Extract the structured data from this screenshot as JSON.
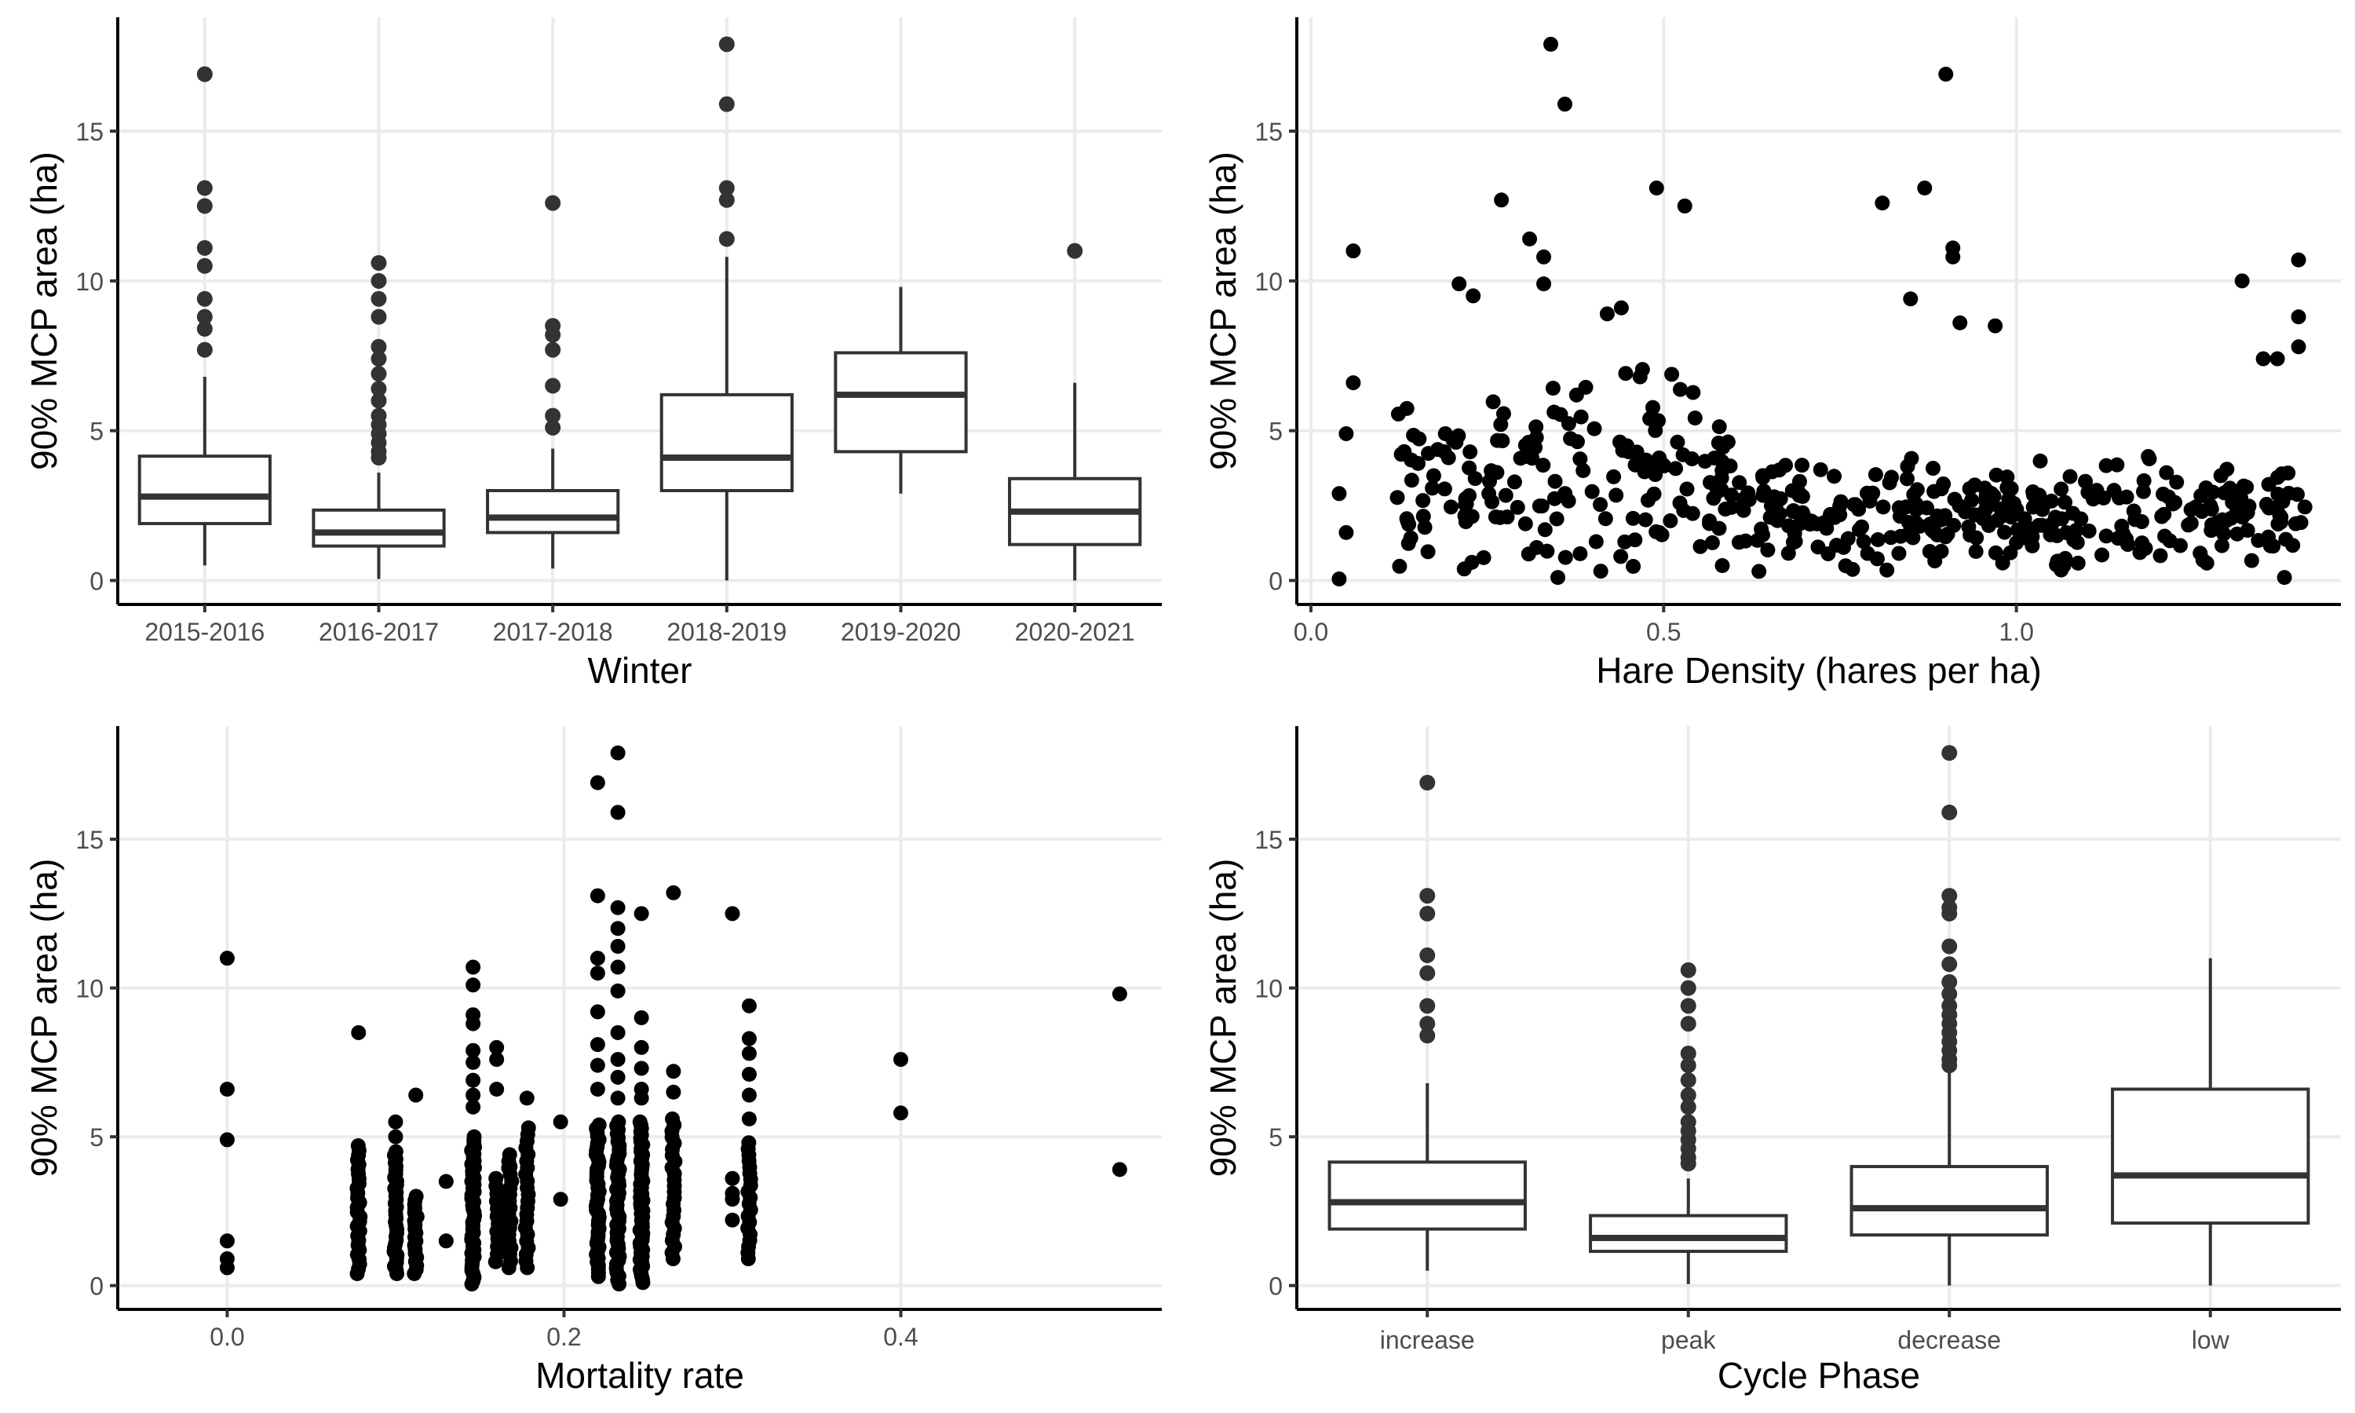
{
  "chart_data": [
    {
      "type": "box",
      "xlabel": "Winter",
      "ylabel": "90% MCP area (ha)",
      "ylim": [
        -0.8,
        18.8
      ],
      "y_ticks": [
        0,
        5,
        10,
        15
      ],
      "grid": true,
      "categories": [
        "2015-2016",
        "2016-2017",
        "2017-2018",
        "2018-2019",
        "2019-2020",
        "2020-2021"
      ],
      "boxes": [
        {
          "min": 0.5,
          "q1": 1.9,
          "median": 2.8,
          "q3": 4.15,
          "max": 6.8,
          "outliers": [
            16.9,
            13.1,
            12.5,
            11.1,
            10.5,
            9.4,
            8.8,
            8.4,
            7.7
          ]
        },
        {
          "min": 0.05,
          "q1": 1.15,
          "median": 1.6,
          "q3": 2.35,
          "max": 3.6,
          "outliers": [
            10.6,
            10.0,
            9.4,
            8.8,
            7.8,
            7.4,
            6.9,
            6.4,
            6.0,
            5.5,
            5.2,
            4.9,
            4.6,
            4.3,
            4.1
          ]
        },
        {
          "min": 0.4,
          "q1": 1.6,
          "median": 2.1,
          "q3": 3.0,
          "max": 4.4,
          "outliers": [
            12.6,
            8.5,
            8.2,
            7.7,
            6.5,
            5.5,
            5.1
          ]
        },
        {
          "min": 0.0,
          "q1": 3.0,
          "median": 4.1,
          "q3": 6.2,
          "max": 10.8,
          "outliers": [
            17.9,
            15.9,
            13.1,
            12.7,
            11.4
          ]
        },
        {
          "min": 2.9,
          "q1": 4.3,
          "median": 6.2,
          "q3": 7.6,
          "max": 9.8,
          "outliers": []
        },
        {
          "min": 0.0,
          "q1": 1.2,
          "median": 2.3,
          "q3": 3.4,
          "max": 6.6,
          "outliers": [
            11.0
          ]
        }
      ]
    },
    {
      "type": "scatter",
      "xlabel": "Hare Density (hares per ha)",
      "ylabel": "90% MCP area (ha)",
      "xlim": [
        -0.02,
        1.46
      ],
      "ylim": [
        -0.8,
        18.8
      ],
      "x_ticks": [
        0.0,
        0.5,
        1.0
      ],
      "x_tick_labels": [
        "0.0",
        "0.5",
        "1.0"
      ],
      "y_ticks": [
        0,
        5,
        10,
        15
      ],
      "grid": true,
      "points_highlight": [
        {
          "x": 0.34,
          "y": 17.9
        },
        {
          "x": 0.9,
          "y": 16.9
        },
        {
          "x": 0.36,
          "y": 15.9
        },
        {
          "x": 0.49,
          "y": 13.1
        },
        {
          "x": 0.87,
          "y": 13.1
        },
        {
          "x": 0.27,
          "y": 12.7
        },
        {
          "x": 0.53,
          "y": 12.5
        },
        {
          "x": 0.81,
          "y": 12.6
        },
        {
          "x": 0.31,
          "y": 11.4
        },
        {
          "x": 0.06,
          "y": 11.0
        },
        {
          "x": 0.91,
          "y": 11.1
        },
        {
          "x": 0.33,
          "y": 10.8
        },
        {
          "x": 0.91,
          "y": 10.8
        },
        {
          "x": 1.4,
          "y": 10.7
        },
        {
          "x": 0.21,
          "y": 9.9
        },
        {
          "x": 0.33,
          "y": 9.9
        },
        {
          "x": 1.32,
          "y": 10.0
        },
        {
          "x": 0.23,
          "y": 9.5
        },
        {
          "x": 0.85,
          "y": 9.4
        },
        {
          "x": 0.44,
          "y": 9.1
        },
        {
          "x": 0.42,
          "y": 8.9
        },
        {
          "x": 1.4,
          "y": 8.8
        },
        {
          "x": 0.97,
          "y": 8.5
        },
        {
          "x": 0.92,
          "y": 8.6
        },
        {
          "x": 1.4,
          "y": 7.8
        },
        {
          "x": 1.35,
          "y": 7.4
        },
        {
          "x": 1.37,
          "y": 7.4
        },
        {
          "x": 0.06,
          "y": 6.6
        },
        {
          "x": 0.05,
          "y": 4.9
        },
        {
          "x": 0.04,
          "y": 2.9
        },
        {
          "x": 0.04,
          "y": 0.05
        },
        {
          "x": 0.05,
          "y": 1.6
        },
        {
          "x": 1.38,
          "y": 0.1
        },
        {
          "x": 0.35,
          "y": 0.1
        }
      ],
      "points_cloud": {
        "count": 480,
        "x_range": [
          0.12,
          1.41
        ],
        "y_center": 2.2,
        "y_spread": 1.6
      }
    },
    {
      "type": "scatter",
      "xlabel": "Mortality rate",
      "ylabel": "90% MCP area (ha)",
      "xlim": [
        -0.065,
        0.555
      ],
      "ylim": [
        -0.8,
        18.8
      ],
      "x_ticks": [
        0.0,
        0.2,
        0.4
      ],
      "x_tick_labels": [
        "0.0",
        "0.2",
        "0.4"
      ],
      "y_ticks": [
        0,
        5,
        10,
        15
      ],
      "grid": true,
      "columns": [
        {
          "x": 0.0,
          "values": [
            11.0,
            6.6,
            4.9,
            1.5,
            0.9,
            0.6
          ]
        },
        {
          "x": 0.078,
          "min": 0.4,
          "max": 4.7,
          "n": 28,
          "extra": [
            8.5
          ]
        },
        {
          "x": 0.1,
          "min": 0.4,
          "max": 4.5,
          "n": 34,
          "extra": [
            5.5,
            5.0
          ]
        },
        {
          "x": 0.112,
          "min": 0.4,
          "max": 3.0,
          "n": 20,
          "extra": [
            6.4
          ]
        },
        {
          "x": 0.13,
          "values": [
            3.5,
            1.5
          ]
        },
        {
          "x": 0.146,
          "min": 0.05,
          "max": 5.0,
          "n": 44,
          "extra": [
            10.7,
            10.1,
            9.1,
            8.8,
            7.9,
            7.5,
            6.9,
            6.4,
            6.0
          ]
        },
        {
          "x": 0.16,
          "min": 0.8,
          "max": 3.6,
          "n": 12,
          "extra": [
            8.0,
            7.6,
            6.6
          ]
        },
        {
          "x": 0.168,
          "min": 0.6,
          "max": 4.4,
          "n": 18,
          "extra": [
            4.0
          ]
        },
        {
          "x": 0.178,
          "min": 0.6,
          "max": 5.3,
          "n": 22,
          "extra": [
            6.3
          ]
        },
        {
          "x": 0.198,
          "values": [
            5.5,
            2.9
          ]
        },
        {
          "x": 0.22,
          "min": 0.3,
          "max": 5.4,
          "n": 42,
          "extra": [
            16.9,
            13.1,
            11.0,
            10.5,
            9.2,
            8.1,
            7.4,
            6.6
          ]
        },
        {
          "x": 0.232,
          "min": 0.05,
          "max": 5.5,
          "n": 42,
          "extra": [
            17.9,
            15.9,
            12.7,
            12.0,
            11.4,
            10.7,
            9.9,
            8.5,
            7.6,
            7.0,
            6.3
          ]
        },
        {
          "x": 0.246,
          "min": 0.1,
          "max": 5.5,
          "n": 50,
          "extra": [
            12.5,
            9.0,
            8.0,
            7.3,
            6.6,
            6.3
          ]
        },
        {
          "x": 0.265,
          "min": 0.9,
          "max": 5.6,
          "n": 24,
          "extra": [
            13.2,
            7.2,
            6.5
          ]
        },
        {
          "x": 0.3,
          "values": [
            12.5,
            3.6,
            3.1,
            2.2,
            2.9
          ]
        },
        {
          "x": 0.31,
          "min": 0.9,
          "max": 4.8,
          "n": 20,
          "extra": [
            9.4,
            8.3,
            7.8,
            7.1,
            6.4,
            5.6
          ]
        },
        {
          "x": 0.4,
          "values": [
            7.6,
            5.8
          ]
        },
        {
          "x": 0.53,
          "values": [
            9.8,
            3.9
          ]
        }
      ]
    },
    {
      "type": "box",
      "xlabel": "Cycle Phase",
      "ylabel": "90% MCP area (ha)",
      "ylim": [
        -0.8,
        18.8
      ],
      "y_ticks": [
        0,
        5,
        10,
        15
      ],
      "grid": true,
      "categories": [
        "increase",
        "peak",
        "decrease",
        "low"
      ],
      "boxes": [
        {
          "min": 0.5,
          "q1": 1.9,
          "median": 2.8,
          "q3": 4.15,
          "max": 6.8,
          "outliers": [
            16.9,
            13.1,
            12.5,
            11.1,
            10.5,
            9.4,
            8.8,
            8.4
          ]
        },
        {
          "min": 0.05,
          "q1": 1.15,
          "median": 1.6,
          "q3": 2.35,
          "max": 3.6,
          "outliers": [
            10.6,
            10.0,
            9.4,
            8.8,
            7.8,
            7.4,
            6.9,
            6.4,
            6.0,
            5.5,
            5.2,
            4.9,
            4.6,
            4.3,
            4.1
          ]
        },
        {
          "min": 0.0,
          "q1": 1.7,
          "median": 2.6,
          "q3": 4.0,
          "max": 7.2,
          "outliers": [
            17.9,
            15.9,
            13.1,
            12.7,
            12.5,
            11.4,
            10.8,
            10.2,
            9.8,
            9.4,
            9.1,
            8.8,
            8.5,
            8.2,
            7.9,
            7.6,
            7.4
          ]
        },
        {
          "min": 0.0,
          "q1": 2.1,
          "median": 3.7,
          "q3": 6.6,
          "max": 11.0,
          "outliers": []
        }
      ]
    }
  ],
  "colors": {
    "point": "#000000",
    "box_line": "#333333",
    "grid": "#ebebeb",
    "tick_label": "#4d4d4d"
  }
}
